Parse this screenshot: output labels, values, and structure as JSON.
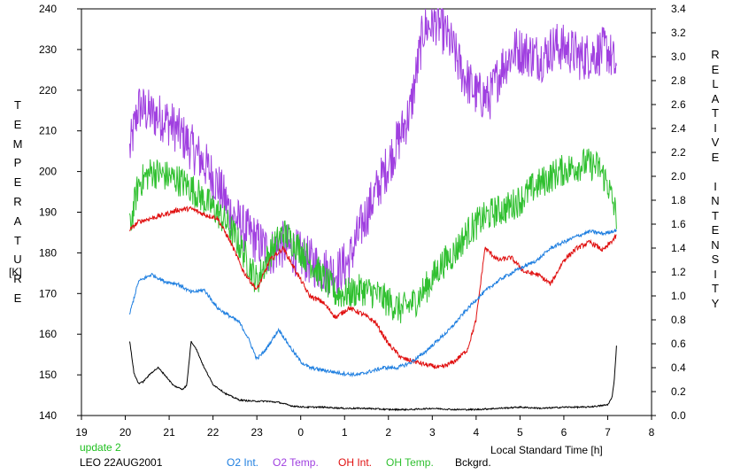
{
  "header": {
    "update_note": "update 2",
    "station_label": "LEO 22AUG2001"
  },
  "colors": {
    "o2_int": "#1f7fe0",
    "o2_temp": "#a040e0",
    "oh_int": "#e01010",
    "oh_temp": "#30c030",
    "bckgrd": "#000000",
    "update_note": "#20c020"
  },
  "chart_data": {
    "type": "line",
    "title": "",
    "xlabel": "Local Standard Time [h]",
    "ylabel_left_letters": [
      "T",
      "E",
      "M",
      "P",
      "E",
      "R",
      "A",
      "T",
      "U",
      "R",
      "E"
    ],
    "ylabel_left_unit": "[K]",
    "ylabel_right_letters": [
      "R",
      "E",
      "L",
      "A",
      "T",
      "I",
      "V",
      "E",
      "",
      "I",
      "N",
      "T",
      "E",
      "N",
      "S",
      "I",
      "T",
      "Y"
    ],
    "xlim": [
      19,
      32
    ],
    "x_tick_labels": [
      "19",
      "20",
      "21",
      "22",
      "23",
      "0",
      "1",
      "2",
      "3",
      "4",
      "5",
      "6",
      "7",
      "8"
    ],
    "ylim_left": [
      140,
      240
    ],
    "y_left_tick_labels": [
      "140",
      "150",
      "160",
      "170",
      "180",
      "190",
      "200",
      "210",
      "220",
      "230",
      "240"
    ],
    "ylim_right": [
      0.0,
      3.4
    ],
    "y_right_tick_labels": [
      "0.0",
      "0.2",
      "0.4",
      "0.6",
      "0.8",
      "1.0",
      "1.2",
      "1.4",
      "1.6",
      "1.8",
      "2.0",
      "2.2",
      "2.4",
      "2.6",
      "2.8",
      "3.0",
      "3.2",
      "3.4"
    ],
    "grid": false,
    "legend_position": "bottom",
    "series": [
      {
        "name": "O2 Int.",
        "axis": "right",
        "color": "#1f7fe0",
        "noise": 0.015,
        "x": [
          20.1,
          20.3,
          20.6,
          20.9,
          21.2,
          21.5,
          21.8,
          22.1,
          22.3,
          22.6,
          22.8,
          23.0,
          23.2,
          23.5,
          23.8,
          24.0,
          24.2,
          24.5,
          24.8,
          25.0,
          25.3,
          25.6,
          25.9,
          26.2,
          26.5,
          26.8,
          27.1,
          27.4,
          27.7,
          28.0,
          28.3,
          28.6,
          29.0,
          29.4,
          29.7,
          30.0,
          30.3,
          30.6,
          30.9,
          31.2
        ],
        "y": [
          0.85,
          1.12,
          1.18,
          1.12,
          1.1,
          1.03,
          1.05,
          0.9,
          0.85,
          0.78,
          0.65,
          0.47,
          0.55,
          0.72,
          0.55,
          0.45,
          0.4,
          0.38,
          0.36,
          0.35,
          0.34,
          0.37,
          0.4,
          0.4,
          0.44,
          0.52,
          0.62,
          0.72,
          0.85,
          0.97,
          1.07,
          1.15,
          1.23,
          1.3,
          1.4,
          1.45,
          1.5,
          1.54,
          1.52,
          1.55
        ]
      },
      {
        "name": "O2 Temp.",
        "axis": "left",
        "color": "#a040e0",
        "noise": 6,
        "x": [
          20.1,
          20.3,
          20.6,
          20.9,
          21.2,
          21.5,
          21.8,
          22.1,
          22.4,
          22.7,
          23.0,
          23.3,
          23.6,
          23.9,
          24.2,
          24.5,
          24.8,
          25.1,
          25.4,
          25.8,
          26.2,
          26.5,
          26.8,
          27.1,
          27.4,
          27.7,
          28.0,
          28.3,
          28.6,
          28.9,
          29.2,
          29.5,
          29.8,
          30.1,
          30.4,
          30.7,
          31.0,
          31.2
        ],
        "y": [
          205,
          216,
          214,
          213,
          210,
          206,
          202,
          197,
          190,
          186,
          183,
          180,
          182,
          180,
          178,
          176,
          175,
          178,
          187,
          197,
          207,
          215,
          235,
          237,
          232,
          224,
          219,
          218,
          226,
          230,
          229,
          228,
          231,
          230,
          228,
          229,
          230,
          225
        ]
      },
      {
        "name": "OH Int.",
        "axis": "right",
        "color": "#e01010",
        "noise": 0.02,
        "x": [
          20.1,
          20.3,
          20.6,
          20.9,
          21.2,
          21.5,
          21.8,
          22.1,
          22.4,
          22.7,
          23.0,
          23.3,
          23.6,
          23.9,
          24.2,
          24.5,
          24.8,
          25.1,
          25.4,
          25.7,
          26.0,
          26.3,
          26.6,
          26.9,
          27.2,
          27.5,
          27.8,
          28.0,
          28.2,
          28.5,
          28.8,
          29.1,
          29.4,
          29.7,
          30.0,
          30.3,
          30.6,
          30.9,
          31.2
        ],
        "y": [
          1.55,
          1.62,
          1.65,
          1.68,
          1.72,
          1.73,
          1.68,
          1.65,
          1.45,
          1.2,
          1.05,
          1.3,
          1.4,
          1.2,
          1.0,
          0.95,
          0.82,
          0.9,
          0.85,
          0.78,
          0.6,
          0.48,
          0.45,
          0.42,
          0.4,
          0.45,
          0.55,
          0.8,
          1.4,
          1.3,
          1.32,
          1.2,
          1.18,
          1.1,
          1.3,
          1.4,
          1.45,
          1.38,
          1.5
        ]
      },
      {
        "name": "OH Temp.",
        "axis": "left",
        "color": "#30c030",
        "noise": 4,
        "x": [
          20.1,
          20.3,
          20.6,
          20.9,
          21.2,
          21.5,
          21.8,
          22.1,
          22.4,
          22.7,
          23.0,
          23.3,
          23.6,
          23.9,
          24.2,
          24.5,
          24.8,
          25.1,
          25.4,
          25.7,
          26.0,
          26.3,
          26.6,
          26.9,
          27.2,
          27.5,
          27.8,
          28.1,
          28.4,
          28.7,
          29.0,
          29.3,
          29.6,
          29.9,
          30.2,
          30.5,
          30.8,
          31.0,
          31.2
        ],
        "y": [
          186,
          197,
          200,
          199,
          198,
          196,
          193,
          190,
          186,
          180,
          173,
          180,
          185,
          182,
          178,
          174,
          170,
          170,
          171,
          170,
          168,
          166,
          168,
          172,
          177,
          180,
          185,
          188,
          190,
          191,
          193,
          196,
          198,
          200,
          201,
          202,
          201,
          197,
          189
        ]
      },
      {
        "name": "Bckgrd.",
        "axis": "right",
        "color": "#000000",
        "noise": 0.006,
        "x": [
          20.1,
          20.2,
          20.3,
          20.4,
          20.6,
          20.75,
          20.9,
          21.1,
          21.3,
          21.4,
          21.5,
          21.6,
          21.8,
          22.0,
          22.3,
          22.6,
          22.9,
          23.2,
          23.5,
          23.8,
          24.1,
          24.5,
          25.0,
          25.5,
          26.0,
          26.5,
          27.0,
          27.5,
          28.0,
          28.5,
          29.0,
          29.5,
          30.0,
          30.5,
          30.8,
          31.0,
          31.1,
          31.15,
          31.2
        ],
        "y": [
          0.62,
          0.35,
          0.27,
          0.28,
          0.36,
          0.4,
          0.34,
          0.25,
          0.22,
          0.25,
          0.62,
          0.57,
          0.4,
          0.26,
          0.18,
          0.13,
          0.12,
          0.12,
          0.11,
          0.08,
          0.07,
          0.07,
          0.06,
          0.06,
          0.05,
          0.05,
          0.06,
          0.05,
          0.05,
          0.06,
          0.07,
          0.06,
          0.07,
          0.07,
          0.08,
          0.09,
          0.15,
          0.3,
          0.58
        ]
      }
    ]
  }
}
